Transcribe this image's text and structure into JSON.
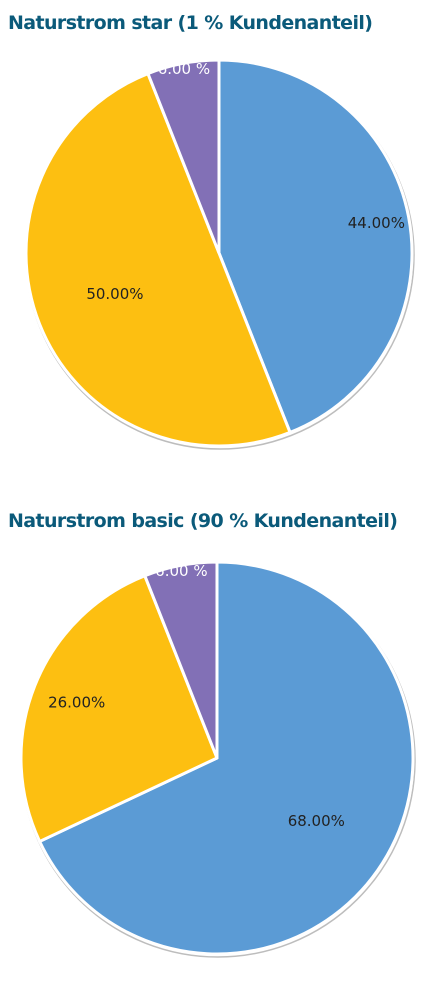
{
  "chart_data": [
    {
      "type": "pie",
      "title": "Naturstrom star (1 % Kundenanteil)",
      "slices": [
        {
          "label": "44.00%",
          "value": 44.0,
          "color": "#5b9bd5",
          "label_color": "#222222"
        },
        {
          "label": "50.00%",
          "value": 50.0,
          "color": "#fdbf11",
          "label_color": "#222222"
        },
        {
          "label": "6.00 %",
          "value": 6.0,
          "color": "#8270b6",
          "label_color": "#ffffff"
        }
      ],
      "start": "12 o'clock",
      "direction": "clockwise",
      "legend": "none"
    },
    {
      "type": "pie",
      "title": "Naturstrom basic (90 % Kundenanteil)",
      "slices": [
        {
          "label": "68.00%",
          "value": 68.0,
          "color": "#5b9bd5",
          "label_color": "#222222"
        },
        {
          "label": "26.00%",
          "value": 26.0,
          "color": "#fdbf11",
          "label_color": "#222222"
        },
        {
          "label": "6.00 %",
          "value": 6.0,
          "color": "#8270b6",
          "label_color": "#ffffff"
        }
      ],
      "start": "12 o'clock",
      "direction": "clockwise",
      "legend": "none"
    }
  ]
}
